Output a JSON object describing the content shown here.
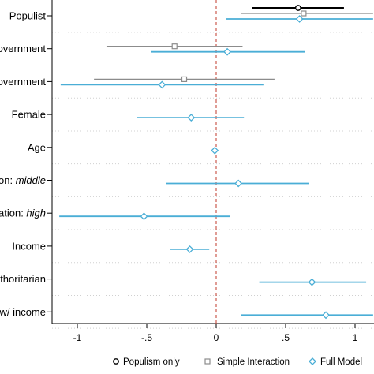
{
  "chart_data": {
    "type": "scatter",
    "subtype": "coefficient-plot",
    "orientation": "horizontal",
    "title": "",
    "xlabel": "",
    "ylabel": "",
    "xlim": [
      -1.13,
      1.13
    ],
    "xticks": [
      -1,
      -0.5,
      0,
      0.5,
      1
    ],
    "xtick_labels": [
      "-1",
      "-.5",
      "0",
      ".5",
      "1"
    ],
    "reference_line": {
      "x": 0,
      "style": "dashed",
      "color": "#c0392b"
    },
    "grid": "dotted horizontal separators",
    "legend_position": "bottom",
    "rows": [
      {
        "label": "Populist",
        "italic_part": ""
      },
      {
        "label": "overnment",
        "italic_part": ""
      },
      {
        "label": "overnment",
        "italic_part": ""
      },
      {
        "label": "Female",
        "italic_part": ""
      },
      {
        "label": "Age",
        "italic_part": ""
      },
      {
        "label": "on: ",
        "italic_part": "middle"
      },
      {
        "label": "ation: ",
        "italic_part": "high"
      },
      {
        "label": "Income",
        "italic_part": ""
      },
      {
        "label": "thoritarian",
        "italic_part": ""
      },
      {
        "label": "w/ income",
        "italic_part": ""
      }
    ],
    "series": [
      {
        "name": "Populism only",
        "marker": "circle",
        "color": "#000000",
        "points": [
          {
            "row": 0,
            "estimate": 0.59,
            "ci": [
              0.26,
              0.92
            ]
          }
        ]
      },
      {
        "name": "Simple Interaction",
        "marker": "square",
        "color": "#8c8c8c",
        "points": [
          {
            "row": 0,
            "estimate": 0.63,
            "ci": [
              0.18,
              1.13
            ]
          },
          {
            "row": 1,
            "estimate": -0.3,
            "ci": [
              -0.79,
              0.19
            ]
          },
          {
            "row": 2,
            "estimate": -0.23,
            "ci": [
              -0.88,
              0.42
            ]
          }
        ]
      },
      {
        "name": "Full Model",
        "marker": "diamond",
        "color": "#4aaed6",
        "points": [
          {
            "row": 0,
            "estimate": 0.6,
            "ci": [
              0.07,
              1.13
            ]
          },
          {
            "row": 1,
            "estimate": 0.08,
            "ci": [
              -0.47,
              0.64
            ]
          },
          {
            "row": 2,
            "estimate": -0.39,
            "ci": [
              -1.12,
              0.34
            ]
          },
          {
            "row": 3,
            "estimate": -0.18,
            "ci": [
              -0.57,
              0.2
            ]
          },
          {
            "row": 4,
            "estimate": -0.01,
            "ci": [
              -0.01,
              -0.01
            ]
          },
          {
            "row": 5,
            "estimate": 0.16,
            "ci": [
              -0.36,
              0.67
            ]
          },
          {
            "row": 6,
            "estimate": -0.52,
            "ci": [
              -1.13,
              0.1
            ]
          },
          {
            "row": 7,
            "estimate": -0.19,
            "ci": [
              -0.33,
              -0.05
            ]
          },
          {
            "row": 8,
            "estimate": 0.69,
            "ci": [
              0.31,
              1.08
            ]
          },
          {
            "row": 9,
            "estimate": 0.79,
            "ci": [
              0.18,
              1.13
            ]
          }
        ]
      }
    ]
  }
}
